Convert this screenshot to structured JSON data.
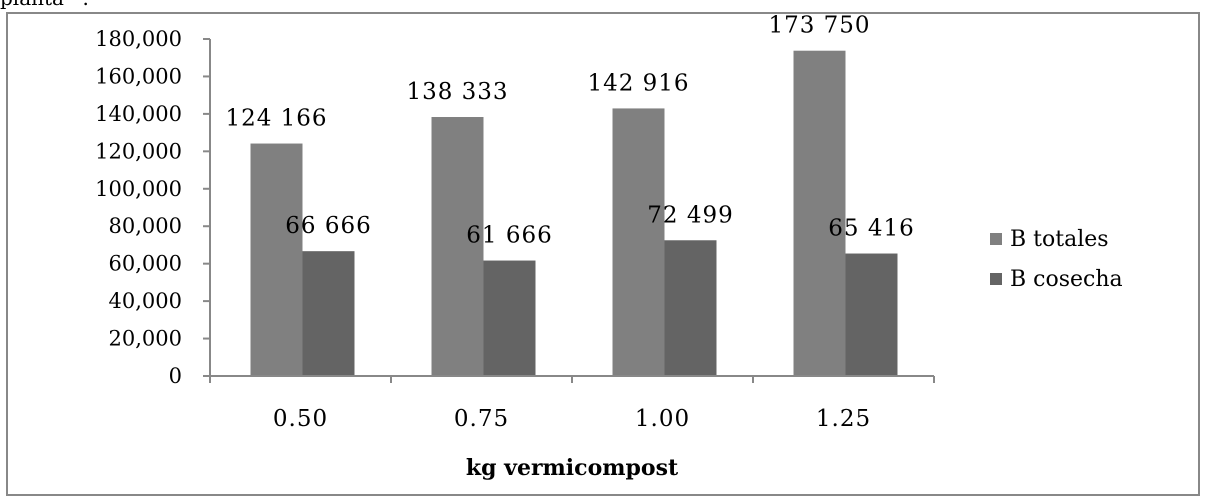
{
  "top_fragment": "planta⁻¹.",
  "chart_data": {
    "type": "bar",
    "title": "",
    "xlabel": "kg vermicompost",
    "ylabel": "",
    "ylim": [
      0,
      180000
    ],
    "yticks": [
      "0",
      "20,000",
      "40,000",
      "60,000",
      "80,000",
      "100,000",
      "120,000",
      "140,000",
      "160,000",
      "180,000"
    ],
    "categories": [
      "0.50",
      "0.75",
      "1.00",
      "1.25"
    ],
    "legend_position": "right",
    "grid": false,
    "series": [
      {
        "name": "B totales",
        "color": "#808080",
        "values": [
          124166,
          138333,
          142916,
          173750
        ],
        "labels": [
          "124 166",
          "138 333",
          "142 916",
          "173 750"
        ]
      },
      {
        "name": "B cosecha",
        "color": "#646464",
        "values": [
          66666,
          61666,
          72499,
          65416
        ],
        "labels": [
          "66 666",
          "61 666",
          "72 499",
          "65 416"
        ]
      }
    ]
  }
}
